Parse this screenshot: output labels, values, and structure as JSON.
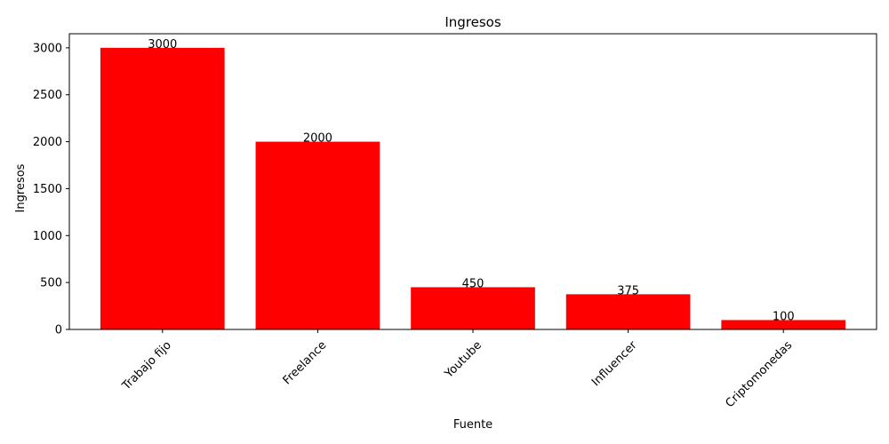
{
  "chart_data": {
    "type": "bar",
    "title": "Ingresos",
    "xlabel": "Fuente",
    "ylabel": "Ingresos",
    "categories": [
      "Trabajo fijo",
      "Freelance",
      "Youtube",
      "Influencer",
      "Criptomonedas"
    ],
    "values": [
      3000,
      2000,
      450,
      375,
      100
    ],
    "ylim": [
      0,
      3150
    ],
    "yticks": [
      0,
      500,
      1000,
      1500,
      2000,
      2500,
      3000
    ],
    "bar_color": "#ff0000",
    "grid": false,
    "legend": "none"
  }
}
